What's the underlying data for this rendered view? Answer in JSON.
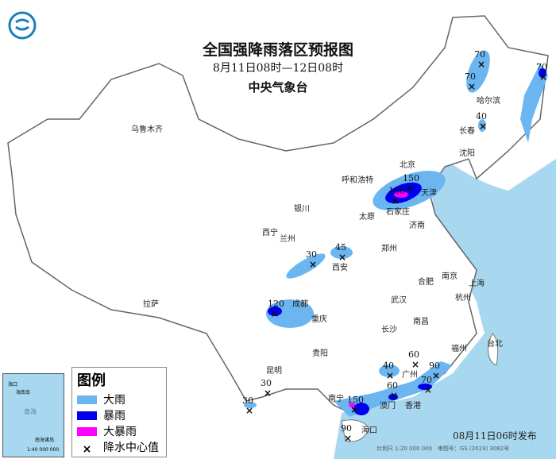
{
  "header": {
    "title": "全国强降雨落区预报图",
    "period": "8月11日08时—12日08时",
    "issuer": "中央气象台"
  },
  "legend": {
    "title": "图例",
    "items": [
      {
        "label": "大雨",
        "color": "#6bb6f0"
      },
      {
        "label": "暴雨",
        "color": "#0000ee"
      },
      {
        "label": "大暴雨",
        "color": "#ff00ff"
      },
      {
        "label": "降水中心值",
        "symbol": "×"
      }
    ]
  },
  "footer": {
    "issue_time": "08月11日06时发布",
    "scale": "比例尺 1:20 000 000",
    "approval": "审图号：GS (2019) 3082号"
  },
  "inset": {
    "label_sea": "南海",
    "label_islands": "南海诸岛",
    "label_haikou": "海口",
    "label_hainan": "海南岛",
    "scale": "1:40 000 000"
  },
  "cities": [
    "乌鲁木齐",
    "呼和浩特",
    "银川",
    "太原",
    "石家庄",
    "北京",
    "天津",
    "济南",
    "西宁",
    "兰州",
    "西安",
    "郑州",
    "合肥",
    "南京",
    "上海",
    "杭州",
    "武汉",
    "成都",
    "重庆",
    "长沙",
    "南昌",
    "福州",
    "台北",
    "贵阳",
    "昆明",
    "拉萨",
    "南宁",
    "广州",
    "香港",
    "澳门",
    "海口",
    "哈尔滨",
    "长春",
    "沈阳"
  ],
  "rain_centers": [
    70,
    70,
    70,
    40,
    150,
    160,
    45,
    30,
    120,
    40,
    60,
    90,
    70,
    60,
    150,
    30,
    30,
    90
  ],
  "colors": {
    "sea": "#a8d8f0",
    "heavy_rain": "#6bb6f0",
    "rainstorm": "#0000ee",
    "heavy_rainstorm": "#ff00ff"
  },
  "logo": "cma-logo-icon"
}
